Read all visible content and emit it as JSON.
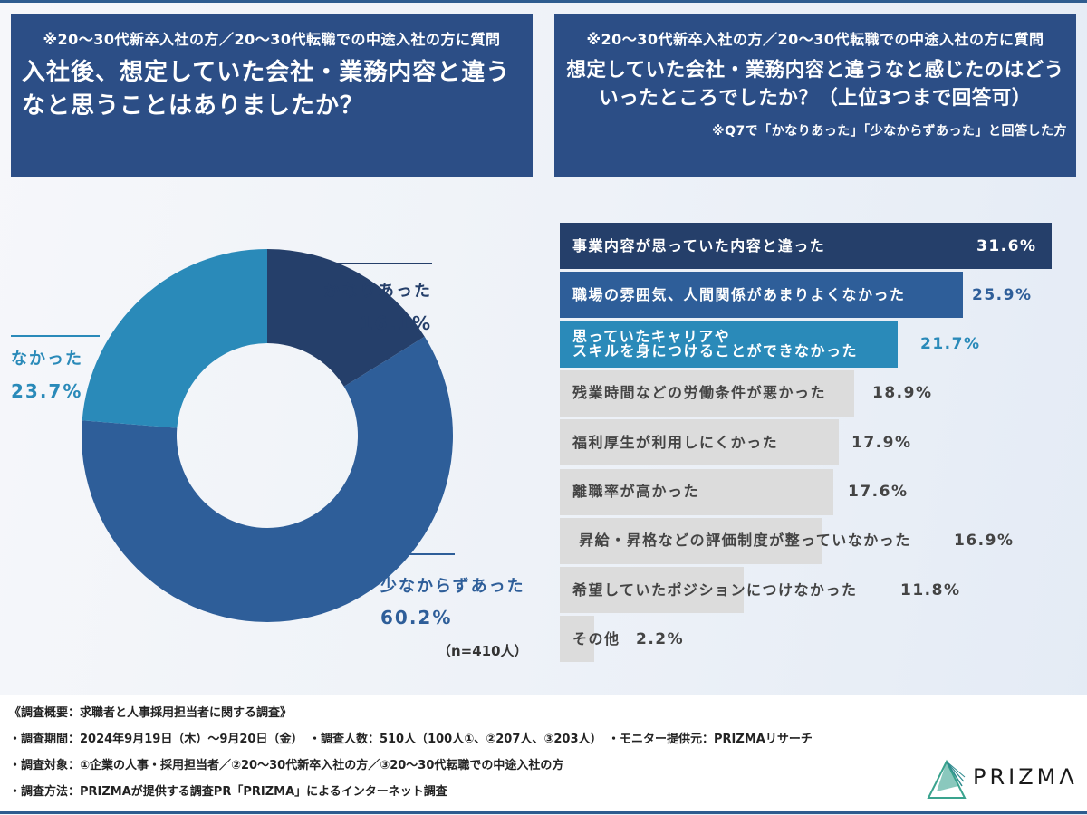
{
  "colors": {
    "header_bg": "#2c4e86",
    "dark_navy": "#253f6a",
    "mid_blue": "#2e5e99",
    "light_blue": "#2a8ab9",
    "gray_bar": "#dcdcdc",
    "gray_text": "#444444"
  },
  "left_header": {
    "subtitle": "※20～30代新卒入社の方／20～30代転職での中途入社の方に質問",
    "question": "入社後、想定していた会社・業務内容と違うなと思うことはありましたか？"
  },
  "right_header": {
    "subtitle": "※20～30代新卒入社の方／20～30代転職での中途入社の方に質問",
    "question": "想定していた会社・業務内容と違うなと感じたのはどういったところでしたか？（上位3つまで回答可）",
    "note": "※Q7で「かなりあった」「少なからずあった」と回答した方"
  },
  "chart_data": [
    {
      "type": "pie",
      "variant": "donut",
      "title": "入社後、想定していた会社・業務内容と違うなと思うことはありましたか？",
      "slices": [
        {
          "label": "かなりあった",
          "value": 16.1,
          "value_label": "16.1%",
          "color": "#253f6a"
        },
        {
          "label": "少なからずあった",
          "value": 60.2,
          "value_label": "60.2%",
          "color": "#2e5e99"
        },
        {
          "label": "なかった",
          "value": 23.7,
          "value_label": "23.7%",
          "color": "#2a8ab9"
        }
      ],
      "start": "top",
      "direction": "clockwise",
      "sample_note": "（n=410人）"
    },
    {
      "type": "bar",
      "orientation": "horizontal",
      "title": "想定していた会社・業務内容と違うなと感じたのはどういったところでしたか？（上位3つまで回答可）",
      "xlim": [
        0,
        31.6
      ],
      "categories": [
        "事業内容が思っていた内容と違った",
        "職場の雰囲気、人間関係があまりよくなかった",
        "思っていたキャリアや\nスキルを身につけることができなかった",
        "残業時間などの労働条件が悪かった",
        "福利厚生が利用しにくかった",
        "離職率が高かった",
        " 昇給・昇格などの評価制度が整っていなかった",
        "希望していたポジションにつけなかった",
        "その他"
      ],
      "values": [
        31.6,
        25.9,
        21.7,
        18.9,
        17.9,
        17.6,
        16.9,
        11.8,
        2.2
      ],
      "value_labels": [
        "31.6%",
        "25.9%",
        "21.7%",
        "18.9%",
        "17.9%",
        "17.6%",
        "16.9%",
        "11.8%",
        "2.2%"
      ],
      "bar_colors": [
        "#253f6a",
        "#2e5e99",
        "#2a8ab9",
        "#dcdcdc",
        "#dcdcdc",
        "#dcdcdc",
        "#dcdcdc",
        "#dcdcdc",
        "#dcdcdc"
      ],
      "label_colors": [
        "#ffffff",
        "#ffffff",
        "#ffffff",
        "#444444",
        "#444444",
        "#444444",
        "#444444",
        "#444444",
        "#444444"
      ],
      "value_colors": [
        "#ffffff",
        "#2e5e99",
        "#2a8ab9",
        "#444444",
        "#444444",
        "#444444",
        "#444444",
        "#444444",
        "#444444"
      ]
    }
  ],
  "footer": {
    "lines": [
      "《調査概要：求職者と人事採用担当者に関する調査》",
      "・調査期間：2024年9月19日（木）～9月20日（金）　・調査人数：510人（100人①、②207人、③203人）　・モニター提供元：PRIZMAリサーチ",
      "・調査対象：①企業の人事・採用担当者／②20～30代新卒入社の方／③20～30代転職での中途入社の方",
      "・調査方法：PRIZMAが提供する調査PR「PRIZMA」によるインターネット調査"
    ],
    "logo_text": "PRIZMΛ",
    "logo_icon": "prism-triangle-icon"
  }
}
